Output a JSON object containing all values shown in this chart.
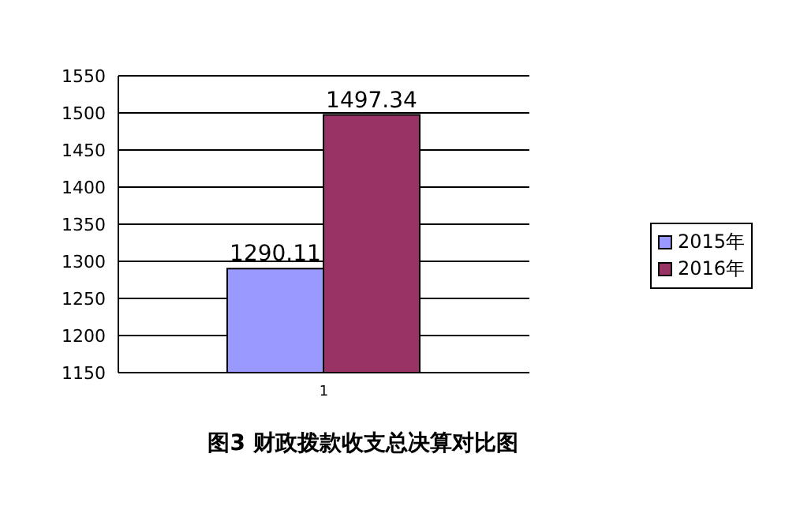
{
  "chart_data": {
    "type": "bar",
    "title": "图3 财政拨款收支总决算对比图",
    "categories": [
      "1"
    ],
    "series": [
      {
        "name": "2015年",
        "color": "#9999ff",
        "values": [
          1290.11
        ]
      },
      {
        "name": "2016年",
        "color": "#993366",
        "values": [
          1497.34
        ]
      }
    ],
    "ylim": [
      1150,
      1550
    ],
    "yticks": [
      1150,
      1200,
      1250,
      1300,
      1350,
      1400,
      1450,
      1500,
      1550
    ],
    "grid": "y",
    "legend": "right",
    "data_labels": true
  }
}
